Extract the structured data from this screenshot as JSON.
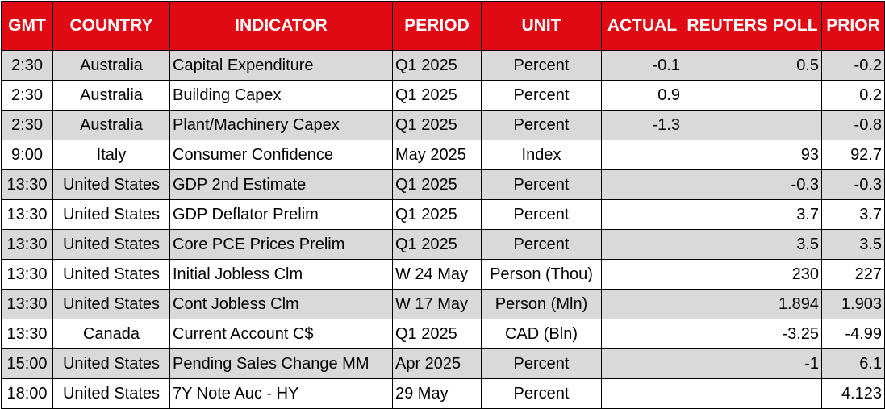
{
  "headers": {
    "gmt": "GMT",
    "country": "COUNTRY",
    "indicator": "INDICATOR",
    "period": "PERIOD",
    "unit": "UNIT",
    "actual": "ACTUAL",
    "poll": "REUTERS POLL",
    "prior": "PRIOR"
  },
  "rows": [
    {
      "gmt": "2:30",
      "country": "Australia",
      "indicator": "Capital Expenditure",
      "period": "Q1 2025",
      "unit": "Percent",
      "actual": "-0.1",
      "poll": "0.5",
      "prior": "-0.2"
    },
    {
      "gmt": "2:30",
      "country": "Australia",
      "indicator": "Building Capex",
      "period": "Q1 2025",
      "unit": "Percent",
      "actual": "0.9",
      "poll": "",
      "prior": "0.2"
    },
    {
      "gmt": "2:30",
      "country": "Australia",
      "indicator": "Plant/Machinery Capex",
      "period": "Q1 2025",
      "unit": "Percent",
      "actual": "-1.3",
      "poll": "",
      "prior": "-0.8"
    },
    {
      "gmt": "9:00",
      "country": "Italy",
      "indicator": "Consumer Confidence",
      "period": "May 2025",
      "unit": "Index",
      "actual": "",
      "poll": "93",
      "prior": "92.7"
    },
    {
      "gmt": "13:30",
      "country": "United States",
      "indicator": "GDP 2nd Estimate",
      "period": "Q1 2025",
      "unit": "Percent",
      "actual": "",
      "poll": "-0.3",
      "prior": "-0.3"
    },
    {
      "gmt": "13:30",
      "country": "United States",
      "indicator": "GDP Deflator Prelim",
      "period": "Q1 2025",
      "unit": "Percent",
      "actual": "",
      "poll": "3.7",
      "prior": "3.7"
    },
    {
      "gmt": "13:30",
      "country": "United States",
      "indicator": "Core PCE Prices Prelim",
      "period": "Q1 2025",
      "unit": "Percent",
      "actual": "",
      "poll": "3.5",
      "prior": "3.5"
    },
    {
      "gmt": "13:30",
      "country": "United States",
      "indicator": "Initial Jobless Clm",
      "period": "W 24 May",
      "unit": "Person (Thou)",
      "actual": "",
      "poll": "230",
      "prior": "227"
    },
    {
      "gmt": "13:30",
      "country": "United States",
      "indicator": "Cont Jobless Clm",
      "period": "W 17 May",
      "unit": "Person (Mln)",
      "actual": "",
      "poll": "1.894",
      "prior": "1.903"
    },
    {
      "gmt": "13:30",
      "country": "Canada",
      "indicator": "Current Account C$",
      "period": "Q1 2025",
      "unit": "CAD (Bln)",
      "actual": "",
      "poll": "-3.25",
      "prior": "-4.99"
    },
    {
      "gmt": "15:00",
      "country": "United States",
      "indicator": "Pending Sales Change MM",
      "period": "Apr 2025",
      "unit": "Percent",
      "actual": "",
      "poll": "-1",
      "prior": "6.1"
    },
    {
      "gmt": "18:00",
      "country": "United States",
      "indicator": "7Y Note Auc - HY",
      "period": "29 May",
      "unit": "Percent",
      "actual": "",
      "poll": "",
      "prior": "4.123"
    }
  ],
  "colors": {
    "header_bg": "#e10a14",
    "header_text": "#ffffff",
    "shaded_row": "#d9d9d9",
    "plain_row": "#ffffff",
    "border": "#000000"
  }
}
